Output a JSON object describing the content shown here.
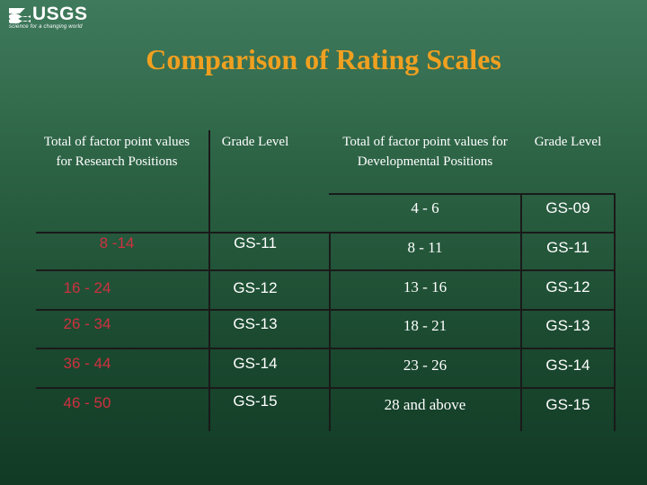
{
  "logo": {
    "text": "USGS",
    "tagline": "science for a changing world"
  },
  "title": "Comparison of Rating Scales",
  "headers": {
    "research_points": "Total of factor point values for Research Positions",
    "research_grade": "Grade Level",
    "dev_points": "Total of factor point values for Developmental Positions",
    "dev_grade": "Grade Level"
  },
  "dev_first_row": {
    "points": "4 - 6",
    "grade": "GS-09"
  },
  "rows": [
    {
      "research_points": "8 -14",
      "research_grade": "GS-11",
      "dev_points": "8 - 11",
      "dev_grade": "GS-11"
    },
    {
      "research_points": "16 - 24",
      "research_grade": "GS-12",
      "dev_points": "13 - 16",
      "dev_grade": "GS-12"
    },
    {
      "research_points": "26 - 34",
      "research_grade": "GS-13",
      "dev_points": "18 - 21",
      "dev_grade": "GS-13"
    },
    {
      "research_points": "36 - 44",
      "research_grade": "GS-14",
      "dev_points": "23 - 26",
      "dev_grade": "GS-14"
    },
    {
      "research_points": "46 - 50",
      "research_grade": "GS-15",
      "dev_points": "28 and above",
      "dev_grade": "GS-15"
    }
  ],
  "colors": {
    "background": "#2c6244",
    "title": "#f0a020",
    "research_points_text": "#d03040",
    "text": "#ffffff",
    "grid": "#1a1a1a"
  }
}
